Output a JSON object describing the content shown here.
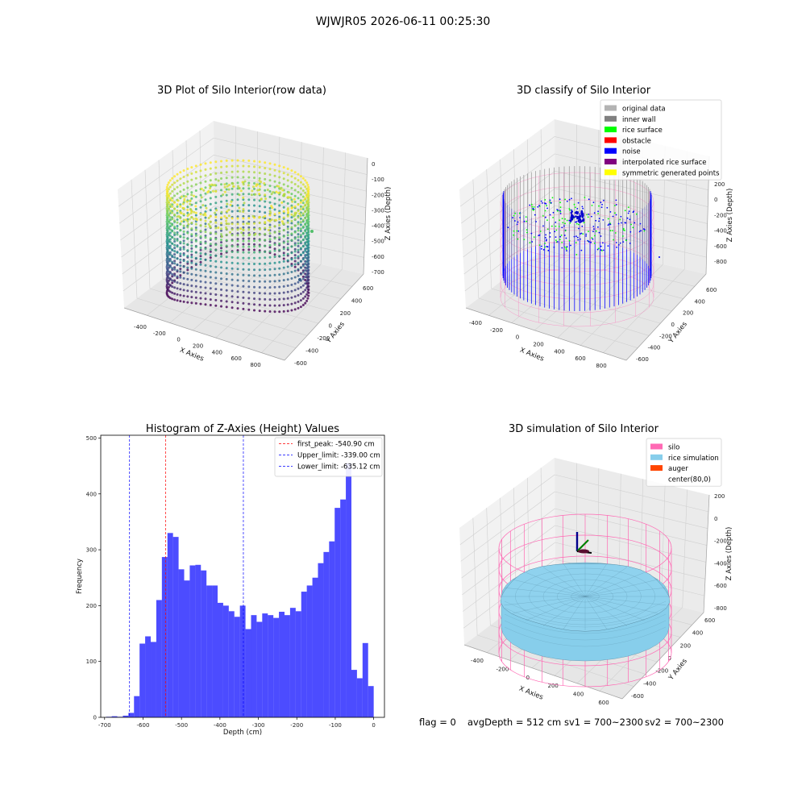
{
  "suptitle": "WJWJR05 2026-06-11 00:25:30",
  "footer": {
    "flag": "flag = 0",
    "avg_depth": "avgDepth = 512 cm",
    "sv1": "sv1 = 700~2300",
    "sv2": "sv2 = 700~2300"
  },
  "chart_data": [
    {
      "type": "scatter",
      "title": "3D Plot of Silo Interior(row data)",
      "xlabel": "X Axies",
      "ylabel": "Y Axies",
      "zlabel": "Z Axies (Depth)",
      "x_ticks": [
        "-400",
        "-200",
        "0",
        "200",
        "400",
        "600",
        "800"
      ],
      "y_ticks": [
        "-600",
        "-400",
        "-200",
        "0",
        "200",
        "400",
        "600"
      ],
      "z_ticks": [
        "0",
        "-100",
        "-200",
        "-300",
        "-400",
        "-500",
        "-600",
        "-700"
      ],
      "colormap": "viridis"
    },
    {
      "type": "scatter",
      "title": "3D classify of Silo Interior",
      "xlabel": "X Axies",
      "ylabel": "Y Axies",
      "zlabel": "Z Axies (Depth)",
      "x_ticks": [
        "-400",
        "-200",
        "0",
        "200",
        "400",
        "600",
        "800"
      ],
      "y_ticks": [
        "-600",
        "-400",
        "-200",
        "0",
        "200",
        "400",
        "600"
      ],
      "z_ticks": [
        "200",
        "0",
        "-200",
        "-400",
        "-600",
        "-800"
      ],
      "legend_placement": "top-right",
      "legend": [
        {
          "label": "original data",
          "color": "#b3b3b3"
        },
        {
          "label": "inner wall",
          "color": "#808080"
        },
        {
          "label": "rice surface",
          "color": "#00ff00"
        },
        {
          "label": "obstacle",
          "color": "#ff0000"
        },
        {
          "label": "noise",
          "color": "#0000ff"
        },
        {
          "label": "interpolated rice surface",
          "color": "#800080"
        },
        {
          "label": "symmetric generated points",
          "color": "#ffff00"
        }
      ]
    },
    {
      "type": "bar",
      "title": "Histogram of Z-Axies (Height) Values",
      "xlabel": "Depth (cm)",
      "ylabel": "Frequency",
      "xlim": [
        -710,
        28
      ],
      "ylim": [
        0,
        505
      ],
      "x_ticks": [
        -700,
        -600,
        -500,
        -400,
        -300,
        -200,
        -100,
        0
      ],
      "y_ticks": [
        0,
        100,
        200,
        300,
        400,
        500
      ],
      "bin_width": 14.5,
      "bin_start": [
        -696,
        -681.5,
        -667,
        -652.5,
        -638,
        -623.5,
        -609,
        -594.5,
        -580,
        -565.5,
        -551,
        -536.5,
        -522,
        -507.5,
        -493,
        -478.5,
        -464,
        -449.5,
        -435,
        -420.5,
        -406,
        -391.5,
        -377,
        -362.5,
        -348,
        -333.5,
        -319,
        -304.5,
        -290,
        -275.5,
        -261,
        -246.5,
        -232,
        -217.5,
        -203,
        -188.5,
        -174,
        -159.5,
        -145,
        -130.5,
        -116,
        -101.5,
        -87,
        -72.5,
        -58,
        -43.5,
        -29,
        -14.5
      ],
      "values": [
        1,
        2,
        1,
        3,
        8,
        38,
        132,
        145,
        135,
        210,
        287,
        330,
        323,
        265,
        245,
        272,
        273,
        263,
        236,
        236,
        205,
        200,
        190,
        180,
        200,
        158,
        183,
        171,
        186,
        183,
        178,
        189,
        183,
        196,
        190,
        225,
        236,
        250,
        276,
        296,
        315,
        375,
        390,
        455,
        85,
        70,
        133,
        56
      ],
      "color": "#0000ff",
      "lines": [
        {
          "label": "first_peak: -540.90 cm",
          "x": -540.9,
          "color": "#ff0000"
        },
        {
          "label": "Upper_limit: -339.00 cm",
          "x": -339.0,
          "color": "#0000ff"
        },
        {
          "label": "Lower_limit: -635.12 cm",
          "x": -635.12,
          "color": "#0000ff"
        }
      ],
      "legend_placement": "top-right"
    },
    {
      "type": "area",
      "title": "3D simulation of Silo Interior",
      "xlabel": "X Axies",
      "ylabel": "Y Axies",
      "zlabel": "Z Axies (Depth)",
      "x_ticks": [
        "-400",
        "-200",
        "0",
        "200",
        "400",
        "600"
      ],
      "y_ticks": [
        "-600",
        "-400",
        "-200",
        "0",
        "200",
        "400",
        "600"
      ],
      "z_ticks": [
        "200",
        "0",
        "-200",
        "-400",
        "-600",
        "-800"
      ],
      "legend_placement": "top-right",
      "legend": [
        {
          "label": "silo",
          "color": "#ff69b4"
        },
        {
          "label": "rice simulation",
          "color": "#87ceeb"
        },
        {
          "label": "auger",
          "color": "#ff4500"
        },
        {
          "label": "center(80,0)",
          "color": "none"
        }
      ]
    }
  ]
}
